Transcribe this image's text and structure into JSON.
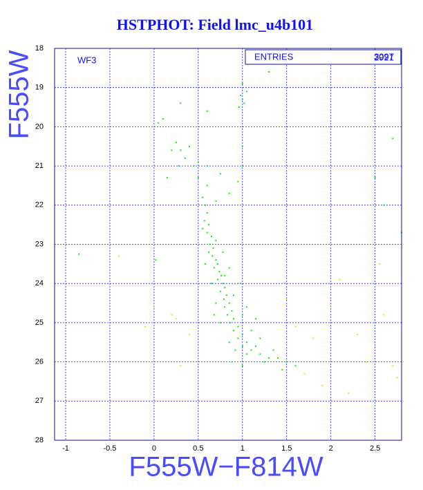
{
  "chart_data": {
    "type": "scatter",
    "title": "HSTPHOT: Field lmc_u4b101",
    "x_label": "F555W−F814W",
    "y_label": "F555W",
    "annotation": "WF3",
    "stats": {
      "label": "ENTRIES",
      "values": [
        3097,
        2921
      ]
    },
    "xlim": [
      -1.125,
      2.8
    ],
    "ylim": [
      28,
      18
    ],
    "xticks": [
      -1,
      -0.5,
      0,
      0.5,
      1,
      1.5,
      2,
      2.5
    ],
    "yticks": [
      18,
      19,
      20,
      21,
      22,
      23,
      24,
      25,
      26,
      27,
      28
    ],
    "grid": true,
    "series": [
      {
        "color": "#00ee00",
        "x": [
          0.55,
          0.58,
          0.6,
          0.57,
          0.62,
          0.6,
          0.65,
          0.63,
          0.67,
          0.7,
          0.66,
          0.7,
          0.72,
          0.68,
          0.74,
          0.76,
          0.72,
          0.78,
          0.8,
          0.75,
          0.82,
          0.79,
          0.85,
          0.8,
          0.88,
          0.83,
          0.9,
          0.86,
          0.95,
          0.9,
          1.0,
          0.95,
          1.05,
          1.0,
          1.1,
          1.05,
          1.2,
          1.3,
          1.4,
          1.5,
          0.92,
          1.15,
          0.7,
          0.75,
          0.62,
          0.55,
          0.8,
          0.9,
          1.0,
          1.1,
          1.2,
          0.85,
          1.25,
          1.35,
          1.6,
          0.65,
          0.7,
          0.6,
          0.5,
          0.45,
          0.35,
          0.3,
          0.25,
          0.4,
          0.5,
          0.2,
          0.28,
          0.15,
          0.6,
          0.75,
          0.85,
          0.95,
          1.0,
          1.0,
          1.0,
          0.98,
          1.02,
          1.05,
          0.96,
          1.0,
          0.6,
          0.3,
          0.05,
          0.1,
          2.7,
          2.6,
          2.8,
          1.2,
          1.3,
          0.78,
          0.85,
          0.95,
          1.05,
          1.15,
          0.58,
          0.68,
          0.88,
          1.0,
          1.45,
          0.02,
          -0.85,
          2.5
        ],
        "values": [
          21.8,
          22.0,
          22.2,
          22.4,
          22.5,
          22.7,
          22.8,
          23.0,
          23.1,
          22.9,
          23.3,
          23.4,
          23.5,
          23.6,
          23.7,
          23.8,
          23.9,
          24.0,
          24.1,
          24.2,
          24.3,
          24.4,
          24.5,
          24.6,
          24.7,
          24.8,
          24.9,
          25.0,
          25.1,
          25.2,
          25.3,
          25.4,
          25.5,
          25.6,
          25.7,
          25.8,
          25.8,
          25.9,
          25.9,
          26.0,
          25.7,
          25.6,
          24.5,
          25.0,
          23.2,
          22.6,
          23.8,
          24.3,
          24.8,
          25.2,
          25.4,
          25.5,
          26.0,
          25.7,
          26.1,
          24.0,
          21.9,
          21.5,
          21.3,
          21.0,
          20.8,
          20.6,
          20.4,
          20.5,
          20.9,
          20.6,
          21.0,
          21.3,
          21.0,
          21.2,
          21.7,
          21.4,
          21.0,
          20.5,
          19.3,
          19.2,
          19.4,
          19.1,
          19.5,
          18.9,
          19.6,
          19.4,
          19.9,
          19.8,
          20.3,
          22.0,
          22.7,
          18.4,
          18.6,
          23.2,
          23.6,
          24.0,
          24.6,
          24.9,
          23.5,
          24.8,
          26.0,
          26.1,
          26.2,
          23.4,
          23.25,
          21.3
        ]
      },
      {
        "color": "#e8e800",
        "x": [
          0.2,
          0.25,
          -0.4,
          0.4,
          1.6,
          1.8,
          2.0,
          2.1,
          2.3,
          2.5,
          2.7,
          2.75,
          2.2,
          1.9,
          0.0,
          -0.1,
          1.5,
          2.55,
          2.6,
          1.7,
          2.4,
          0.3
        ],
        "values": [
          24.8,
          24.9,
          23.3,
          25.3,
          25.1,
          25.4,
          24.6,
          23.9,
          25.3,
          25.6,
          26.1,
          26.4,
          26.8,
          26.6,
          24.6,
          25.1,
          24.4,
          23.5,
          24.8,
          26.3,
          26.0,
          26.1
        ]
      }
    ]
  }
}
